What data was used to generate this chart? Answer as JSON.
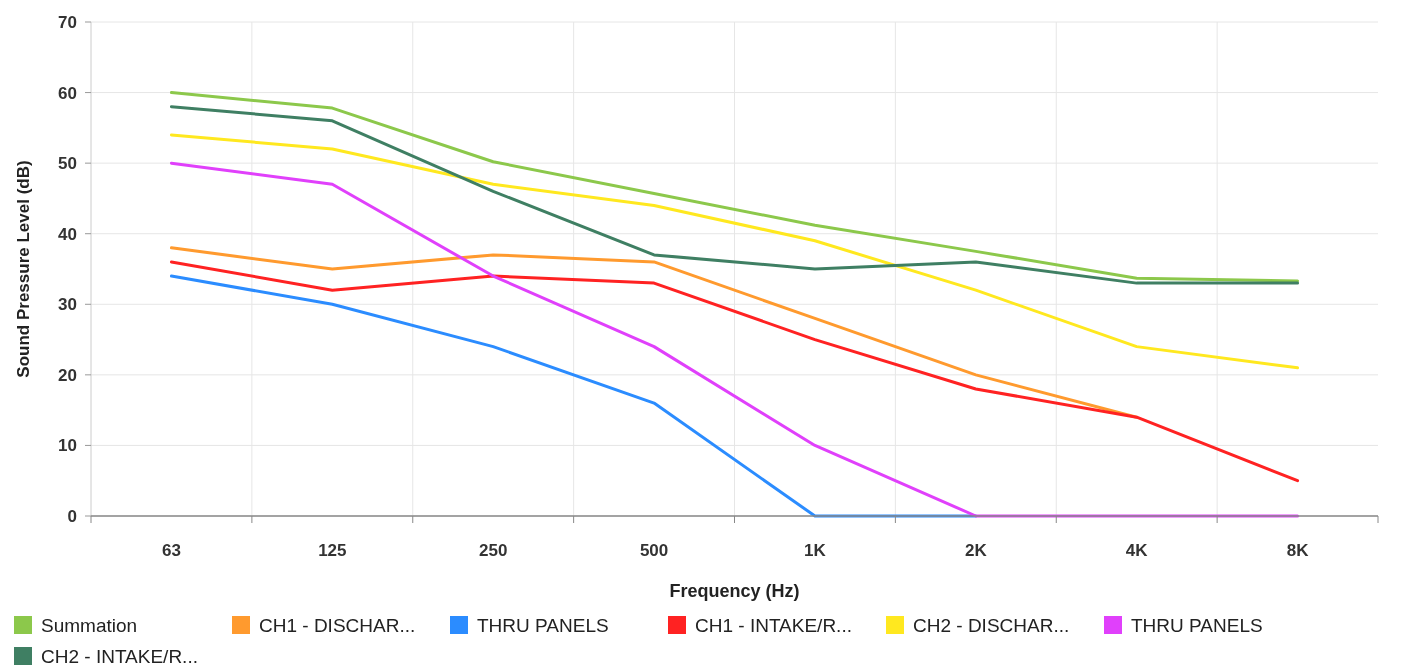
{
  "chart_data": {
    "type": "line",
    "xlabel": "Frequency (Hz)",
    "ylabel": "Sound Pressure Level (dB)",
    "categories": [
      "63",
      "125",
      "250",
      "500",
      "1K",
      "2K",
      "4K",
      "8K"
    ],
    "ylim": [
      0,
      70
    ],
    "yticks": [
      0,
      10,
      20,
      30,
      40,
      50,
      60,
      70
    ],
    "grid": true,
    "legend": "bottom",
    "marker": "none",
    "line_style": "solid",
    "series": [
      {
        "name": "Summation",
        "color": "#8cc84b",
        "values": [
          60,
          57.8,
          50.2,
          45.7,
          41.2,
          37.5,
          33.7,
          33.3
        ]
      },
      {
        "name": "CH1 - DISCHAR...",
        "color": "#ff9a2e",
        "values": [
          38,
          35,
          37,
          36,
          28,
          20,
          14,
          null
        ]
      },
      {
        "name": "THRU PANELS",
        "color": "#2b8cff",
        "values": [
          34,
          30,
          24,
          16,
          0,
          0,
          null,
          null
        ]
      },
      {
        "name": "CH1 - INTAKE/R...",
        "color": "#ff2222",
        "values": [
          36,
          32,
          34,
          33,
          25,
          18,
          14,
          5
        ]
      },
      {
        "name": "CH2 - DISCHAR...",
        "color": "#ffe81f",
        "values": [
          54,
          52,
          47,
          44,
          39,
          32,
          24,
          21
        ]
      },
      {
        "name": "THRU PANELS",
        "color": "#e040fb",
        "values": [
          50,
          47,
          34,
          24,
          10,
          0,
          0,
          0
        ]
      },
      {
        "name": "CH2 - INTAKE/R...",
        "color": "#3f7f63",
        "values": [
          58,
          56,
          46,
          37,
          35,
          36,
          33,
          33
        ]
      }
    ]
  }
}
